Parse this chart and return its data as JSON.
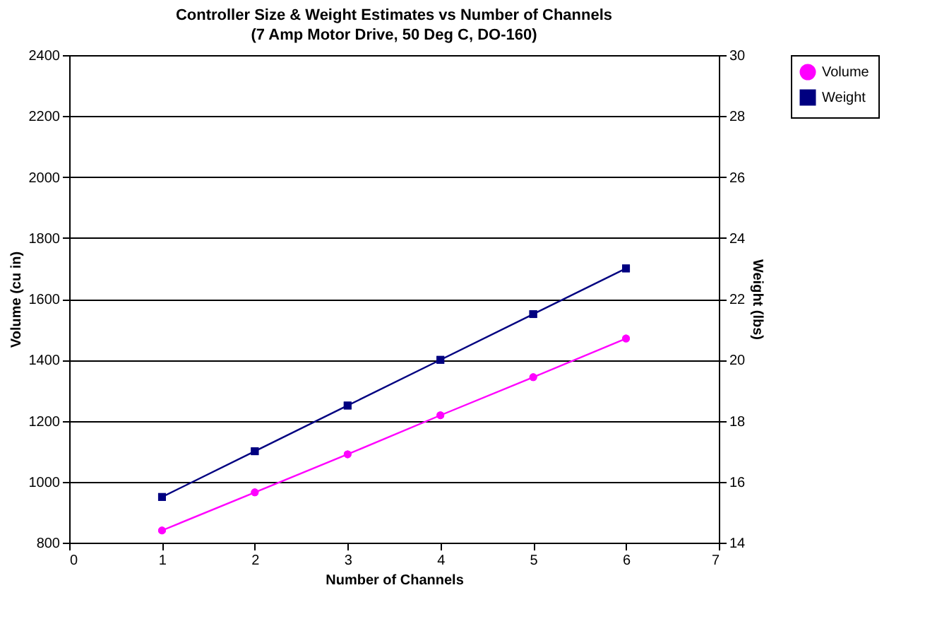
{
  "chart_data": {
    "type": "line",
    "title": "Controller Size & Weight Estimates vs Number of Channels",
    "subtitle": "(7 Amp Motor Drive, 50 Deg C, DO-160)",
    "xlabel": "Number of Channels",
    "ylabel": "Volume (cu in)",
    "y2label": "Weight (lbs)",
    "x": [
      1,
      2,
      3,
      4,
      5,
      6
    ],
    "series": [
      {
        "name": "Volume",
        "color": "#ff00ff",
        "marker": "circle",
        "values": [
          840,
          965,
          1090,
          1218,
          1343,
          1470
        ]
      },
      {
        "name": "Weight",
        "color": "#000080",
        "marker": "square",
        "axis": "y2",
        "values": [
          15.5,
          17,
          18.5,
          20,
          21.5,
          23
        ]
      }
    ],
    "xlim": [
      0,
      7
    ],
    "xticks": [
      0,
      1,
      2,
      3,
      4,
      5,
      6,
      7
    ],
    "ylim": [
      800,
      2400
    ],
    "yticks": [
      800,
      1000,
      1200,
      1400,
      1600,
      1800,
      2000,
      2200,
      2400
    ],
    "y2lim": [
      14,
      30
    ],
    "y2ticks": [
      14,
      16,
      18,
      20,
      22,
      24,
      26,
      28,
      30
    ],
    "grid": "y",
    "legend": "right",
    "line_style": "solid"
  }
}
